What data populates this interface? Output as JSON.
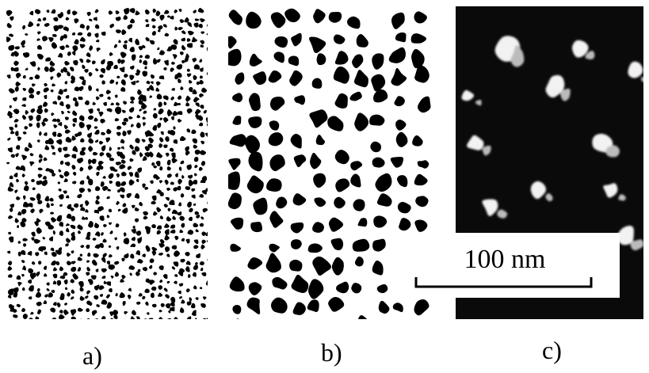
{
  "panels": [
    {
      "label": "a)"
    },
    {
      "label": "b)"
    },
    {
      "label": "c)"
    }
  ],
  "scale_bar": {
    "label": "100 nm"
  }
}
